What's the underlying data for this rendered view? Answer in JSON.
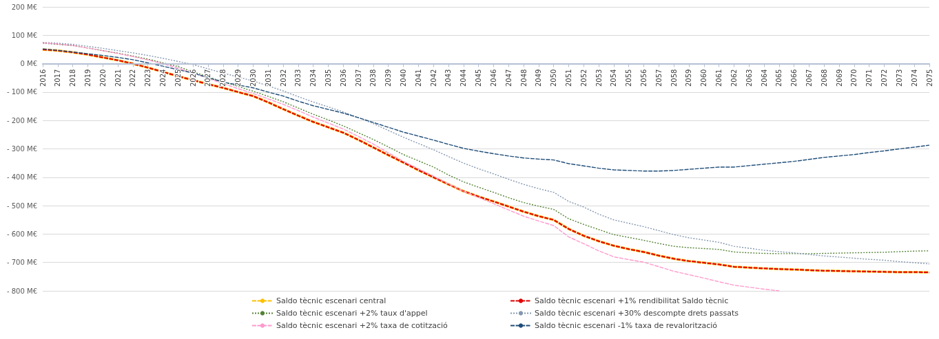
{
  "chart_data": {
    "type": "line",
    "categories": [
      "2016",
      "2017",
      "2018",
      "2019",
      "2020",
      "2021",
      "2022",
      "2023",
      "2024",
      "2025",
      "2026",
      "2027",
      "2028",
      "2029",
      "2030",
      "2031",
      "2032",
      "2033",
      "2034",
      "2035",
      "2036",
      "2037",
      "2038",
      "2039",
      "2040",
      "2041",
      "2042",
      "2043",
      "2044",
      "2045",
      "2046",
      "2047",
      "2048",
      "2049",
      "2050",
      "2051",
      "2052",
      "2053",
      "2054",
      "2055",
      "2056",
      "2057",
      "2058",
      "2059",
      "2060",
      "2061",
      "2062",
      "2063",
      "2064",
      "2065",
      "2066",
      "2067",
      "2068",
      "2069",
      "2070",
      "2071",
      "2072",
      "2073",
      "2074",
      "2075"
    ],
    "series": [
      {
        "name": "Saldo tècnic escenari central",
        "color": "#ffc000",
        "line_style": "dashed",
        "values": [
          50,
          46,
          40,
          32,
          22,
          12,
          0,
          -14,
          -29,
          -44,
          -58,
          -72,
          -85,
          -100,
          -114,
          -136,
          -160,
          -183,
          -205,
          -224,
          -243,
          -268,
          -295,
          -322,
          -348,
          -375,
          -400,
          -425,
          -449,
          -468,
          -485,
          -503,
          -521,
          -537,
          -550,
          -582,
          -606,
          -625,
          -641,
          -653,
          -663,
          -676,
          -687,
          -695,
          -701,
          -707,
          -715,
          -718,
          -721,
          -723,
          -725,
          -727,
          -729,
          -730,
          -731,
          -732,
          -733,
          -734,
          -734,
          -735
        ]
      },
      {
        "name": "Saldo tècnic escenari +1% rendibilitat Saldo tècnic",
        "color": "#e00000",
        "line_style": "dashed",
        "values": [
          50,
          46,
          40,
          32,
          22,
          12,
          0,
          -14,
          -29,
          -44,
          -58,
          -72,
          -85,
          -100,
          -114,
          -136,
          -160,
          -183,
          -205,
          -224,
          -243,
          -268,
          -295,
          -322,
          -348,
          -375,
          -400,
          -425,
          -449,
          -468,
          -485,
          -503,
          -521,
          -537,
          -550,
          -582,
          -606,
          -625,
          -641,
          -653,
          -663,
          -676,
          -687,
          -695,
          -701,
          -707,
          -715,
          -718,
          -721,
          -723,
          -725,
          -727,
          -729,
          -730,
          -731,
          -732,
          -733,
          -734,
          -734,
          -735
        ]
      },
      {
        "name": "Saldo tècnic escenari +2% taux d'appel",
        "color": "#548235",
        "line_style": "dotted",
        "values": [
          72,
          68,
          64,
          55,
          46,
          37,
          27,
          16,
          3,
          -10,
          -29,
          -46,
          -64,
          -80,
          -97,
          -115,
          -134,
          -156,
          -178,
          -198,
          -219,
          -243,
          -267,
          -293,
          -320,
          -342,
          -364,
          -392,
          -416,
          -435,
          -453,
          -472,
          -489,
          -502,
          -513,
          -546,
          -566,
          -584,
          -602,
          -612,
          -622,
          -633,
          -643,
          -648,
          -651,
          -654,
          -663,
          -666,
          -668,
          -669,
          -669,
          -669,
          -668,
          -667,
          -666,
          -665,
          -664,
          -662,
          -660,
          -659
        ]
      },
      {
        "name": "Saldo tècnic escenari +30% descompte drets passats",
        "color": "#8497b0",
        "line_style": "dotted",
        "values": [
          75,
          72,
          68,
          61,
          54,
          46,
          38,
          29,
          19,
          8,
          -3,
          -18,
          -33,
          -47,
          -61,
          -78,
          -96,
          -116,
          -135,
          -152,
          -170,
          -190,
          -211,
          -235,
          -259,
          -281,
          -303,
          -327,
          -350,
          -370,
          -388,
          -407,
          -425,
          -440,
          -453,
          -485,
          -505,
          -530,
          -550,
          -562,
          -574,
          -588,
          -602,
          -613,
          -621,
          -629,
          -643,
          -650,
          -657,
          -662,
          -666,
          -672,
          -677,
          -681,
          -685,
          -689,
          -692,
          -697,
          -701,
          -705
        ]
      },
      {
        "name": "Saldo tècnic escenari +2% taxa de cotització",
        "color": "#ff99cc",
        "line_style": "dashed",
        "values": [
          73,
          69,
          64,
          55,
          46,
          36,
          25,
          13,
          0,
          -16,
          -33,
          -52,
          -70,
          -88,
          -105,
          -124,
          -143,
          -165,
          -188,
          -209,
          -230,
          -256,
          -283,
          -314,
          -344,
          -370,
          -396,
          -423,
          -449,
          -471,
          -493,
          -515,
          -537,
          -554,
          -570,
          -610,
          -634,
          -659,
          -680,
          -690,
          -699,
          -715,
          -731,
          -743,
          -755,
          -768,
          -780,
          -787,
          -794,
          -800,
          null,
          null,
          null,
          null,
          null,
          null,
          null,
          null,
          null,
          null
        ]
      },
      {
        "name": "Saldo tècnic escenari -1% taxa de revalorització",
        "color": "#1f4e79",
        "line_style": "dashed",
        "values": [
          52,
          47,
          41,
          35,
          29,
          22,
          14,
          3,
          -9,
          -21,
          -33,
          -49,
          -65,
          -75,
          -85,
          -100,
          -114,
          -132,
          -148,
          -161,
          -174,
          -190,
          -207,
          -224,
          -241,
          -255,
          -269,
          -284,
          -298,
          -308,
          -317,
          -325,
          -332,
          -336,
          -339,
          -352,
          -360,
          -368,
          -374,
          -376,
          -378,
          -378,
          -376,
          -372,
          -368,
          -364,
          -364,
          -359,
          -354,
          -349,
          -344,
          -337,
          -330,
          -325,
          -320,
          -313,
          -307,
          -300,
          -294,
          -287
        ]
      }
    ],
    "ylim": [
      -800,
      200
    ],
    "yticks": [
      {
        "value": -800,
        "label": "- 800 M€"
      },
      {
        "value": -700,
        "label": "- 700 M€"
      },
      {
        "value": -600,
        "label": "- 600 M€"
      },
      {
        "value": -500,
        "label": "- 500 M€"
      },
      {
        "value": -400,
        "label": "- 400 M€"
      },
      {
        "value": -300,
        "label": "- 300 M€"
      },
      {
        "value": -200,
        "label": "- 200 M€"
      },
      {
        "value": -100,
        "label": "- 100 M€"
      },
      {
        "value": 0,
        "label": "0 M€"
      },
      {
        "value": 100,
        "label": "100 M€"
      },
      {
        "value": 200,
        "label": "200 M€"
      }
    ],
    "grid": "y",
    "legend": "bottom",
    "marker": "none"
  }
}
